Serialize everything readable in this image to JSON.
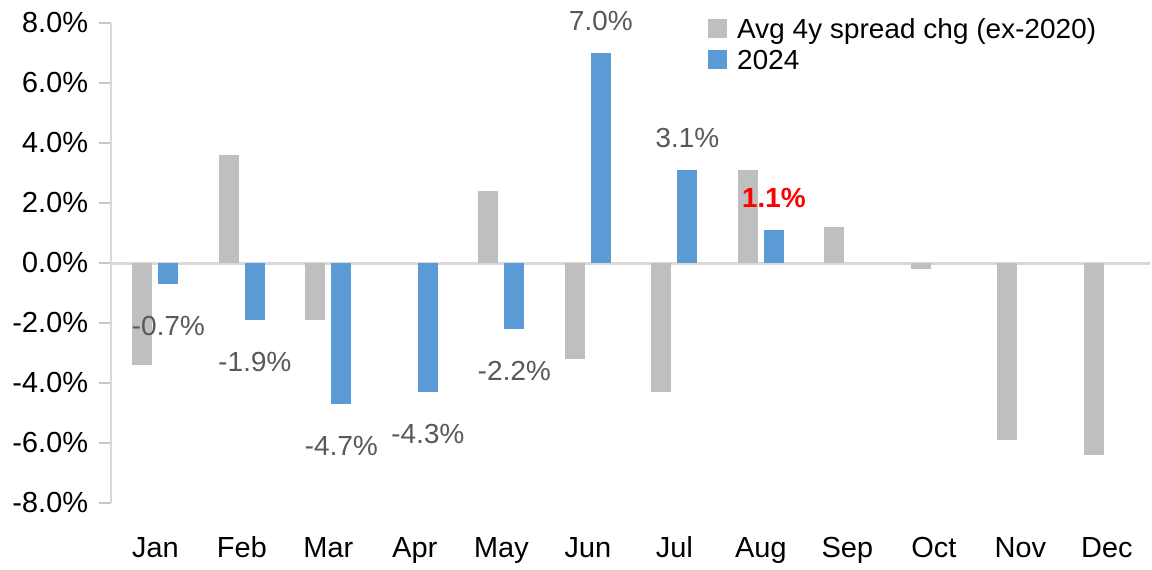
{
  "chart_data": {
    "type": "bar",
    "title": "",
    "xlabel": "",
    "ylabel": "",
    "categories": [
      "Jan",
      "Feb",
      "Mar",
      "Apr",
      "May",
      "Jun",
      "Jul",
      "Aug",
      "Sep",
      "Oct",
      "Nov",
      "Dec"
    ],
    "series": [
      {
        "name": "Avg 4y spread chg (ex-2020)",
        "color": "#bfbfbf",
        "values": [
          -3.4,
          3.6,
          -1.9,
          0.0,
          2.4,
          -3.2,
          -4.3,
          3.1,
          1.2,
          -0.2,
          -5.9,
          -6.4
        ]
      },
      {
        "name": "2024",
        "color": "#5b9bd5",
        "values": [
          -0.7,
          -1.9,
          -4.7,
          -4.3,
          -2.2,
          7.0,
          3.1,
          1.1,
          null,
          null,
          null,
          null
        ]
      }
    ],
    "data_labels": [
      {
        "category": "Jan",
        "series": "2024",
        "text": "-0.7%",
        "color": "#595959",
        "bold": false
      },
      {
        "category": "Feb",
        "series": "2024",
        "text": "-1.9%",
        "color": "#595959",
        "bold": false
      },
      {
        "category": "Mar",
        "series": "2024",
        "text": "-4.7%",
        "color": "#595959",
        "bold": false
      },
      {
        "category": "Apr",
        "series": "2024",
        "text": "-4.3%",
        "color": "#595959",
        "bold": false
      },
      {
        "category": "May",
        "series": "2024",
        "text": "-2.2%",
        "color": "#595959",
        "bold": false
      },
      {
        "category": "Jun",
        "series": "2024",
        "text": "7.0%",
        "color": "#595959",
        "bold": false
      },
      {
        "category": "Jul",
        "series": "2024",
        "text": "3.1%",
        "color": "#595959",
        "bold": false
      },
      {
        "category": "Aug",
        "series": "2024",
        "text": "1.1%",
        "color": "#ff0000",
        "bold": true
      }
    ],
    "y_axis": {
      "tick_labels": [
        "8.0%",
        "6.0%",
        "4.0%",
        "2.0%",
        "0.0%",
        "-2.0%",
        "-4.0%",
        "-6.0%",
        "-8.0%"
      ],
      "tick_values": [
        8,
        6,
        4,
        2,
        0,
        -2,
        -4,
        -6,
        -8
      ],
      "min": -8,
      "max": 8,
      "unit": "%"
    },
    "legend": {
      "position": "top-right",
      "entries": [
        {
          "label": "Avg 4y spread chg (ex-2020)",
          "color": "#bfbfbf"
        },
        {
          "label": "2024",
          "color": "#5b9bd5"
        }
      ]
    },
    "grid": false,
    "colors": {
      "axis_line": "#d9d9d9",
      "tick_mark": "#c6c6c6",
      "axis_text": "#000000",
      "data_label_default": "#595959",
      "data_label_highlight": "#ff0000"
    }
  }
}
